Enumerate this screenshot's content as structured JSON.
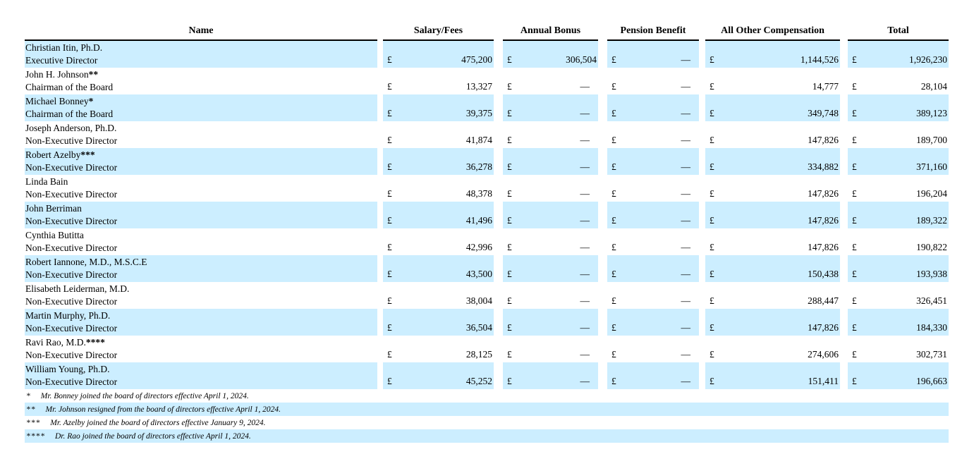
{
  "table": {
    "columns": [
      "Name",
      "Salary/Fees",
      "Annual Bonus",
      "Pension Benefit",
      "All Other Compensation",
      "Total"
    ],
    "currency_symbol": "£",
    "empty_value": "—",
    "colors": {
      "row_highlight": "#cceeff",
      "text": "#000000",
      "header_rule": "#000000"
    },
    "rows": [
      {
        "name": "Christian Itin, Ph.D.",
        "name_marker": "",
        "title": "Executive Director",
        "salary": "475,200",
        "bonus": "306,504",
        "pension": "—",
        "other": "1,144,526",
        "total": "1,926,230"
      },
      {
        "name": "John H. Johnson",
        "name_marker": "**",
        "title": "Chairman of the Board",
        "salary": "13,327",
        "bonus": "—",
        "pension": "—",
        "other": "14,777",
        "total": "28,104"
      },
      {
        "name": "Michael Bonney",
        "name_marker": "*",
        "title": "Chairman of the Board",
        "salary": "39,375",
        "bonus": "—",
        "pension": "—",
        "other": "349,748",
        "total": "389,123"
      },
      {
        "name": "Joseph Anderson, Ph.D.",
        "name_marker": "",
        "title": "Non-Executive Director",
        "salary": "41,874",
        "bonus": "—",
        "pension": "—",
        "other": "147,826",
        "total": "189,700"
      },
      {
        "name": "Robert Azelby",
        "name_marker": "***",
        "title": "Non-Executive Director",
        "salary": "36,278",
        "bonus": "—",
        "pension": "—",
        "other": "334,882",
        "total": "371,160"
      },
      {
        "name": "Linda Bain",
        "name_marker": "",
        "title": "Non-Executive Director",
        "salary": "48,378",
        "bonus": "—",
        "pension": "—",
        "other": "147,826",
        "total": "196,204"
      },
      {
        "name": "John Berriman",
        "name_marker": "",
        "title": "Non-Executive Director",
        "salary": "41,496",
        "bonus": "—",
        "pension": "—",
        "other": "147,826",
        "total": "189,322"
      },
      {
        "name": "Cynthia Butitta",
        "name_marker": "",
        "title": "Non-Executive Director",
        "salary": "42,996",
        "bonus": "—",
        "pension": "—",
        "other": "147,826",
        "total": "190,822"
      },
      {
        "name": "Robert Iannone, M.D., M.S.C.E",
        "name_marker": "",
        "title": "Non-Executive Director",
        "salary": "43,500",
        "bonus": "—",
        "pension": "—",
        "other": "150,438",
        "total": "193,938"
      },
      {
        "name": "Elisabeth Leiderman, M.D.",
        "name_marker": "",
        "title": "Non-Executive Director",
        "salary": "38,004",
        "bonus": "—",
        "pension": "—",
        "other": "288,447",
        "total": "326,451"
      },
      {
        "name": "Martin Murphy, Ph.D.",
        "name_marker": "",
        "title": "Non-Executive Director",
        "salary": "36,504",
        "bonus": "—",
        "pension": "—",
        "other": "147,826",
        "total": "184,330"
      },
      {
        "name": "Ravi Rao, M.D.",
        "name_marker": "****",
        "title": "Non-Executive Director",
        "salary": "28,125",
        "bonus": "—",
        "pension": "—",
        "other": "274,606",
        "total": "302,731"
      },
      {
        "name": "William Young, Ph.D.",
        "name_marker": "",
        "title": "Non-Executive Director",
        "salary": "45,252",
        "bonus": "—",
        "pension": "—",
        "other": "151,411",
        "total": "196,663"
      }
    ],
    "footnotes": [
      {
        "marker": "*",
        "text": "Mr. Bonney joined the board of directors effective April 1, 2024."
      },
      {
        "marker": "**",
        "text": "Mr. Johnson resigned from the board of directors effective April 1, 2024."
      },
      {
        "marker": "***",
        "text": "Mr. Azelby joined the board of directors effective January 9, 2024."
      },
      {
        "marker": "****",
        "text": "Dr. Rao joined the board of directors effective April 1, 2024."
      }
    ]
  }
}
